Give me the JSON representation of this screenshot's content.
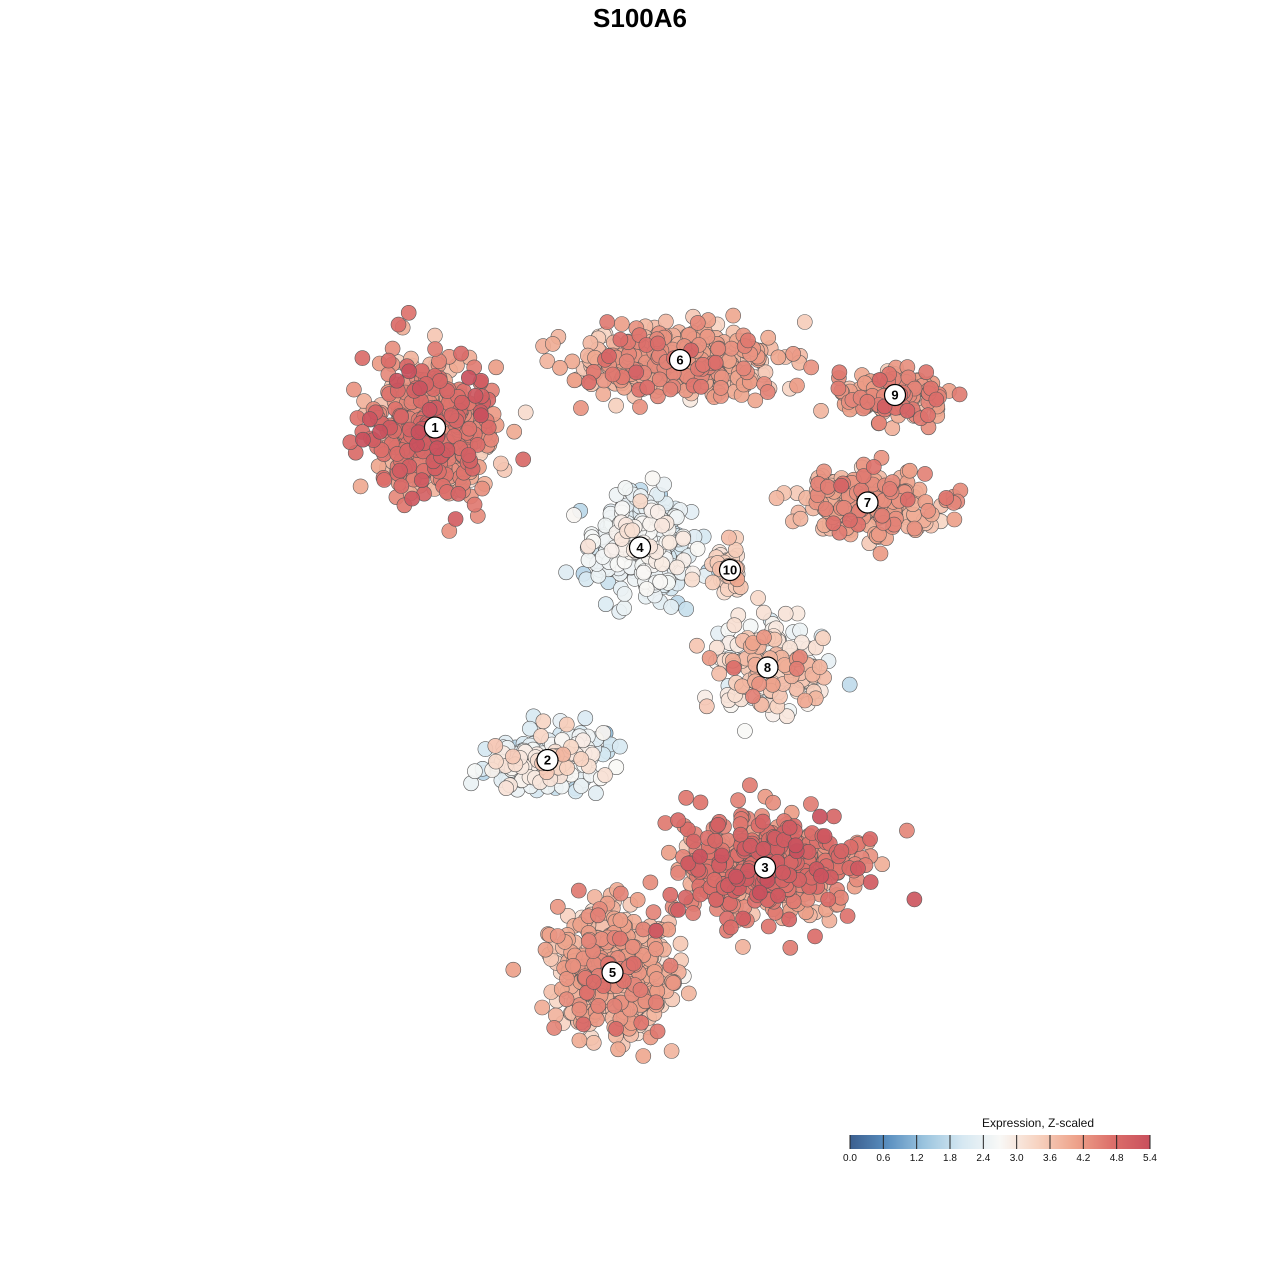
{
  "chart_data": {
    "type": "scatter",
    "title": "S100A6",
    "xlabel": "",
    "ylabel": "",
    "grid": false,
    "legend": {
      "title": "Expression, Z-scaled",
      "placement": "bottom-right",
      "ticks": [
        "0.0",
        "0.6",
        "1.2",
        "1.8",
        "2.4",
        "3.0",
        "3.6",
        "4.2",
        "4.8",
        "5.4"
      ],
      "range": [
        0,
        5.4
      ],
      "colors": [
        "#3b5f8f",
        "#5a8fc0",
        "#9cc5df",
        "#d6e8f2",
        "#f8f8f6",
        "#f7d3c1",
        "#eea48c",
        "#dc6f6a",
        "#c9505d"
      ]
    },
    "clusters": [
      {
        "id": "1",
        "x": -8.2,
        "y": 8.3,
        "sx": 1.6,
        "sy": 1.9,
        "n": 520,
        "mean": 4.3,
        "sd": 0.5
      },
      {
        "id": "2",
        "x": -3.7,
        "y": -5.0,
        "sx": 1.5,
        "sy": 0.8,
        "n": 240,
        "mean": 2.4,
        "sd": 0.5
      },
      {
        "id": "3",
        "x": 5.0,
        "y": -9.3,
        "sx": 2.4,
        "sy": 1.4,
        "n": 520,
        "mean": 4.5,
        "sd": 0.4
      },
      {
        "id": "4",
        "x": 0.0,
        "y": 3.5,
        "sx": 1.3,
        "sy": 1.3,
        "n": 380,
        "mean": 2.3,
        "sd": 0.35
      },
      {
        "id": "5",
        "x": -1.1,
        "y": -13.5,
        "sx": 1.6,
        "sy": 1.6,
        "n": 480,
        "mean": 3.8,
        "sd": 0.4
      },
      {
        "id": "6",
        "x": 1.6,
        "y": 11.0,
        "sx": 2.6,
        "sy": 0.9,
        "n": 420,
        "mean": 3.9,
        "sd": 0.4
      },
      {
        "id": "7",
        "x": 9.1,
        "y": 5.3,
        "sx": 1.8,
        "sy": 0.8,
        "n": 240,
        "mean": 4.0,
        "sd": 0.35
      },
      {
        "id": "8",
        "x": 5.1,
        "y": -1.3,
        "sx": 1.4,
        "sy": 1.2,
        "n": 200,
        "mean": 3.2,
        "sd": 0.6
      },
      {
        "id": "9",
        "x": 10.2,
        "y": 9.6,
        "sx": 1.5,
        "sy": 0.6,
        "n": 150,
        "mean": 4.1,
        "sd": 0.35
      },
      {
        "id": "10",
        "x": 3.6,
        "y": 2.6,
        "sx": 0.4,
        "sy": 0.6,
        "n": 40,
        "mean": 3.4,
        "sd": 0.3
      }
    ],
    "xlim": [
      -20,
      20
    ],
    "ylim": [
      -20,
      20
    ]
  }
}
